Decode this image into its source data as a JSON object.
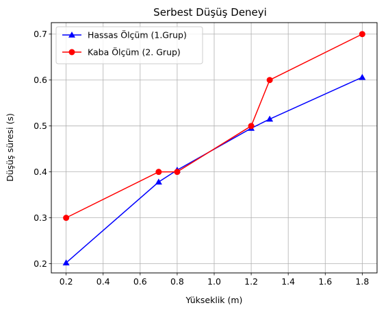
{
  "chart_data": {
    "type": "line",
    "title": "Serbest Düşüş Deneyi",
    "xlabel": "Yükseklik (m)",
    "ylabel": "Düşüş süresi (s)",
    "xlim": [
      0.12,
      1.88
    ],
    "ylim": [
      0.18,
      0.725
    ],
    "xticks": [
      "0.2",
      "0.4",
      "0.6",
      "0.8",
      "1.0",
      "1.2",
      "1.4",
      "1.6",
      "1.8"
    ],
    "yticks": [
      "0.2",
      "0.3",
      "0.4",
      "0.5",
      "0.6",
      "0.7"
    ],
    "grid": true,
    "legend_position": "upper-left",
    "series": [
      {
        "name": "Hassas Ölçüm (1.Grup)",
        "color": "#0000ff",
        "marker": "triangle",
        "x": [
          0.2,
          0.7,
          0.8,
          1.2,
          1.3,
          1.8
        ],
        "y": [
          0.202,
          0.378,
          0.404,
          0.495,
          0.515,
          0.606
        ]
      },
      {
        "name": "Kaba Ölçüm (2. Grup)",
        "color": "#ff0000",
        "marker": "circle",
        "x": [
          0.2,
          0.7,
          0.8,
          1.2,
          1.3,
          1.8
        ],
        "y": [
          0.3,
          0.4,
          0.4,
          0.5,
          0.6,
          0.7
        ]
      }
    ]
  }
}
